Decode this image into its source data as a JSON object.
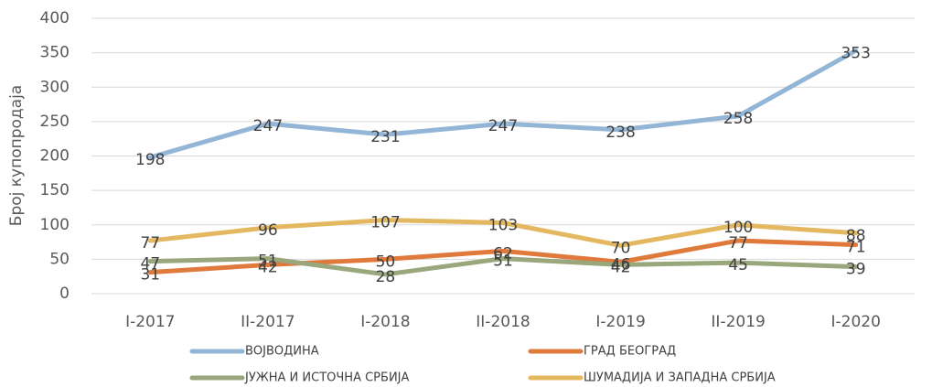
{
  "chart_data": {
    "type": "line",
    "y_label": "Број купопродаја",
    "categories": [
      "I-2017",
      "II-2017",
      "I-2018",
      "II-2018",
      "I-2019",
      "II-2019",
      "I-2020"
    ],
    "series": [
      {
        "name": "ВОЈВОДИНА",
        "color": "#93b5d6",
        "values": [
          198,
          247,
          231,
          247,
          238,
          258,
          353
        ]
      },
      {
        "name": "ГРАД БЕОГРАД",
        "color": "#e07a3c",
        "values": [
          31,
          42,
          50,
          62,
          46,
          77,
          71
        ]
      },
      {
        "name": "ЈУЖНА И ИСТОЧНА СРБИЈА",
        "color": "#9aa67c",
        "values": [
          47,
          51,
          28,
          51,
          42,
          45,
          39
        ]
      },
      {
        "name": "ШУМАДИЈА И ЗАПАДНА СРБИЈА",
        "color": "#e4b860",
        "values": [
          77,
          96,
          107,
          103,
          70,
          100,
          88
        ]
      }
    ],
    "ylim": [
      0,
      400
    ],
    "yticks": [
      0,
      50,
      100,
      150,
      200,
      250,
      300,
      350,
      400
    ],
    "grid": true
  }
}
